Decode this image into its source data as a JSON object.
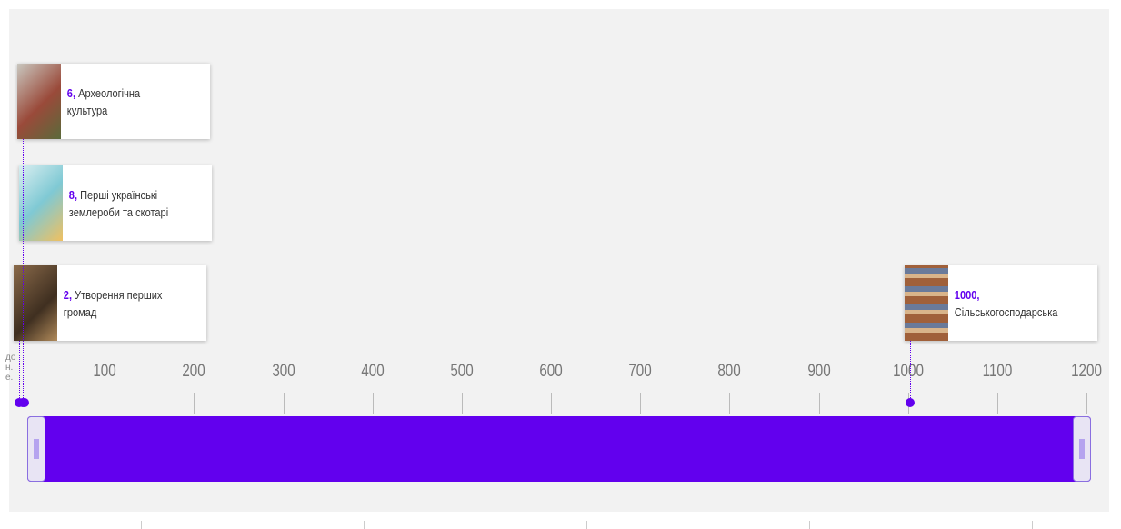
{
  "timeline": {
    "range": [
      0,
      1200
    ],
    "ticks": [
      100,
      200,
      300,
      400,
      500,
      600,
      700,
      800,
      900,
      1000,
      1100,
      1200
    ],
    "era_note": "до н.е.",
    "events": [
      {
        "year": {
          "value": 2,
          "label": "2,"
        },
        "title": "Утворення перших громад"
      },
      {
        "year": {
          "value": 8,
          "label": "8,"
        },
        "title": "Перші українські землероби та скотарі"
      },
      {
        "year": {
          "value": 6,
          "label": "6,"
        },
        "title": "Археологічна культура"
      },
      {
        "year": {
          "value": 1000,
          "label": "1000,"
        },
        "title": "Сільськогосподарська"
      }
    ]
  }
}
